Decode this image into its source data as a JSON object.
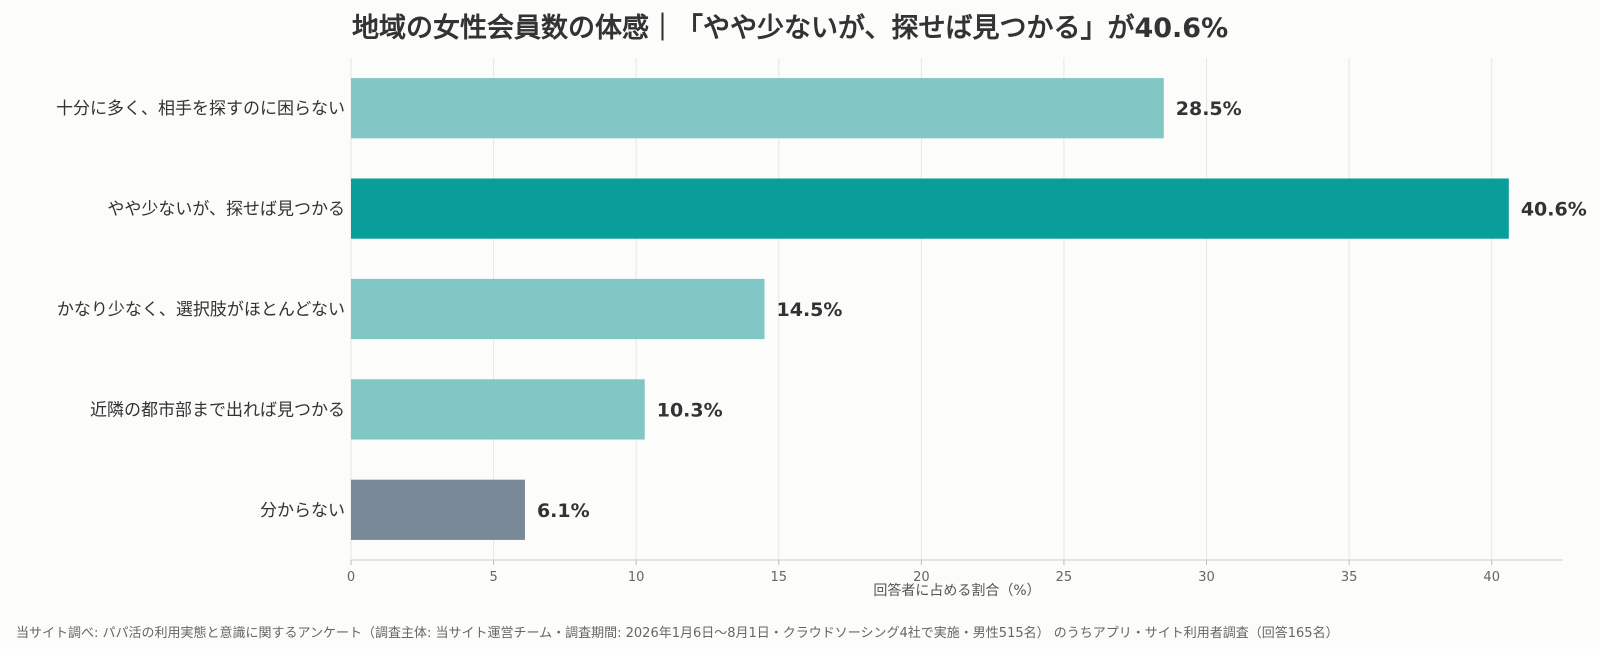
{
  "chart_data": {
    "type": "bar",
    "orientation": "horizontal",
    "title": "地域の女性会員数の体感｜「やや少ないが、探せば見つかる」が40.6%",
    "categories": [
      "十分に多く、相手を探すのに困らない",
      "やや少ないが、探せば見つかる",
      "かなり少なく、選択肢がほとんどない",
      "近隣の都市部まで出れば見つかる",
      "分からない"
    ],
    "values": [
      28.5,
      40.6,
      14.5,
      10.3,
      6.1
    ],
    "value_labels": [
      "28.5%",
      "40.6%",
      "14.5%",
      "10.3%",
      "6.1%"
    ],
    "bar_colors": [
      "#80c7c5",
      "#0a9e9b",
      "#80c7c5",
      "#80c7c5",
      "#7a8997"
    ],
    "xlabel": "回答者に占める割合（%）",
    "ylabel": "",
    "xlim": [
      0,
      42.5
    ],
    "xticks": [
      0,
      5,
      10,
      15,
      20,
      25,
      30,
      35,
      40
    ],
    "grid": true,
    "source_note": "当サイト調べ: パパ活の利用実態と意識に関するアンケート（調査主体: 当サイト運営チーム・調査期間: 2026年1月6日〜8月1日・クラウドソーシング4社で実施・男性515名） のうちアプリ・サイト利用者調査（回答165名）"
  }
}
